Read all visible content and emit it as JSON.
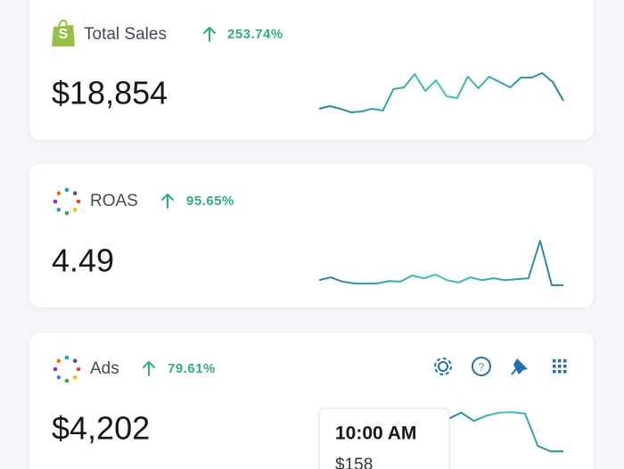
{
  "cards": [
    {
      "label": "Total Sales",
      "change": "253.74%",
      "value": "$18,854",
      "sparkline": {
        "values": [
          16,
          22,
          16,
          8,
          10,
          16,
          12,
          60,
          64,
          94,
          56,
          80,
          44,
          40,
          88,
          62,
          88,
          76,
          64,
          86,
          86,
          96,
          76,
          34
        ],
        "ylim": [
          0,
          100
        ]
      }
    },
    {
      "label": "ROAS",
      "change": "95.65%",
      "value": "4.49",
      "sparkline": {
        "values": [
          15,
          21,
          12,
          8,
          8,
          8,
          13,
          12,
          25,
          19,
          27,
          15,
          10,
          21,
          15,
          19,
          15,
          17,
          19,
          100,
          4,
          4
        ],
        "ylim": [
          0,
          100
        ]
      }
    },
    {
      "label": "Ads",
      "change": "79.61%",
      "value": "$4,202",
      "sparkline": {
        "values": [
          82,
          95,
          78,
          89,
          95,
          96,
          93,
          27,
          16,
          16
        ],
        "ylim": [
          0,
          100
        ]
      },
      "tooltip": {
        "time": "10:00 AM",
        "value": "$158"
      }
    }
  ]
}
